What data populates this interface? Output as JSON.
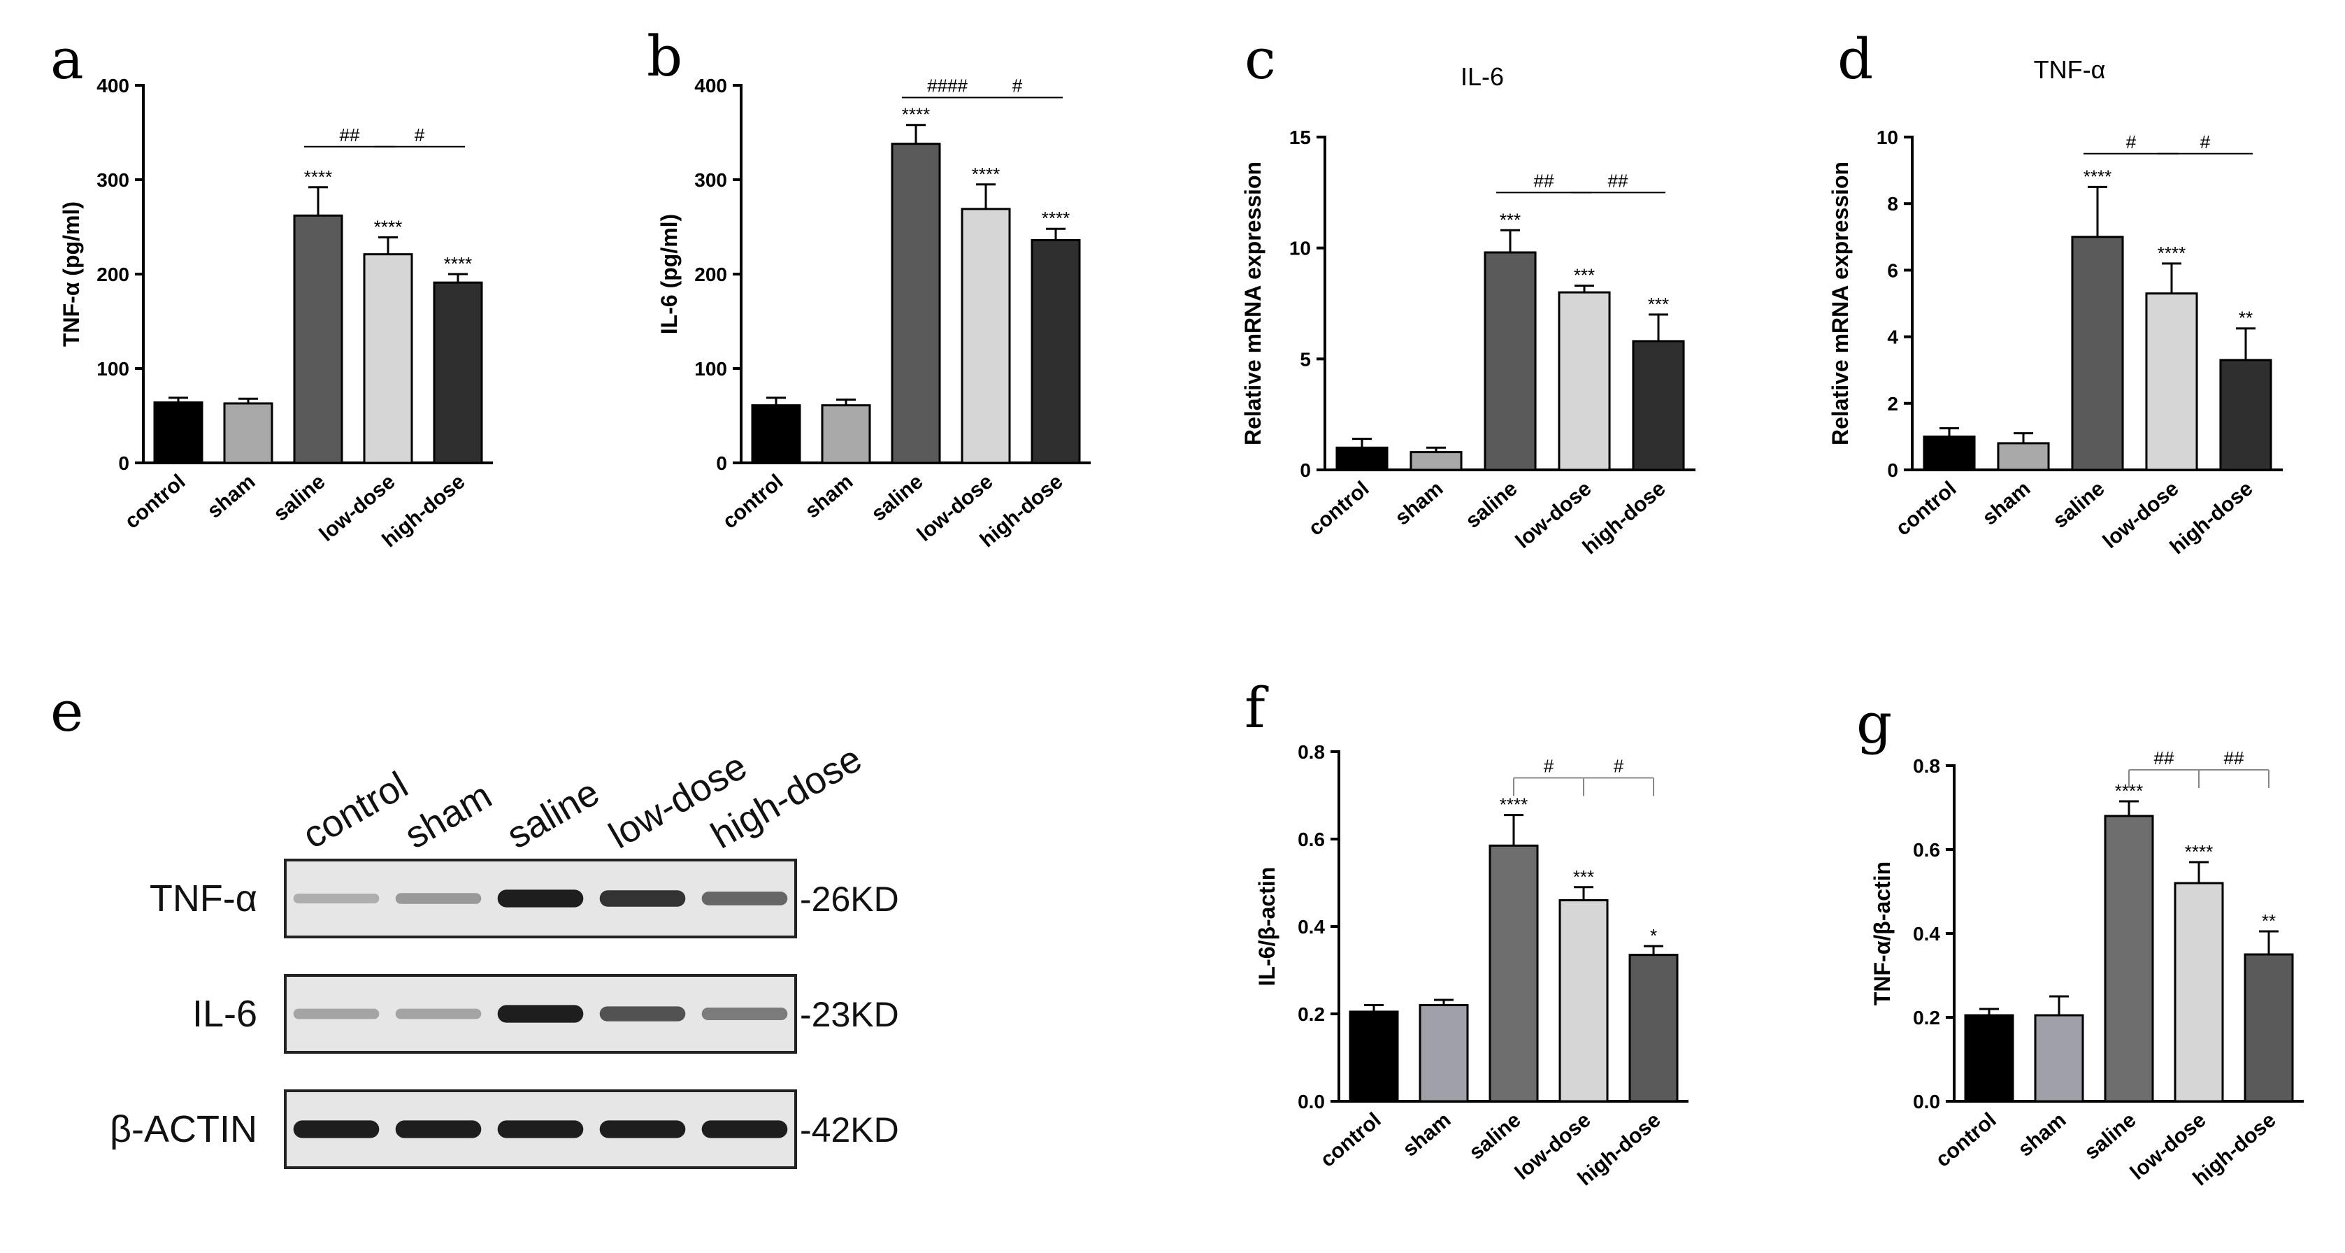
{
  "chart_data": [
    {
      "panel": "a",
      "type": "bar",
      "title": "",
      "ylabel": "TNF-α (pg/ml)",
      "ylim": [
        0,
        400
      ],
      "yticks": [
        0,
        100,
        200,
        300,
        400
      ],
      "categories": [
        "control",
        "sham",
        "saline",
        "low-dose",
        "high-dose"
      ],
      "values": [
        64,
        63,
        262,
        221,
        191
      ],
      "errors": [
        5,
        5,
        30,
        18,
        9
      ],
      "colors": [
        "#000000",
        "#a9a9a9",
        "#5a5a5a",
        "#d6d6d6",
        "#2f2f2f"
      ],
      "stars": [
        "",
        "",
        "****",
        "****",
        "****"
      ],
      "comparisons": [
        {
          "from": 2,
          "to": 3,
          "label": "##",
          "y": 335
        },
        {
          "from": 3,
          "to": 4,
          "label": "#",
          "y": 335
        }
      ]
    },
    {
      "panel": "b",
      "type": "bar",
      "title": "",
      "ylabel": "IL-6 (pg/ml)",
      "ylim": [
        0,
        400
      ],
      "yticks": [
        0,
        100,
        200,
        300,
        400
      ],
      "categories": [
        "control",
        "sham",
        "saline",
        "low-dose",
        "high-dose"
      ],
      "values": [
        61,
        61,
        338,
        269,
        236
      ],
      "errors": [
        8,
        6,
        20,
        26,
        12
      ],
      "colors": [
        "#000000",
        "#a9a9a9",
        "#5a5a5a",
        "#d6d6d6",
        "#2f2f2f"
      ],
      "stars": [
        "",
        "",
        "****",
        "****",
        "****"
      ],
      "comparisons": [
        {
          "from": 2,
          "to": 3,
          "label": "####",
          "y": 387
        },
        {
          "from": 3,
          "to": 4,
          "label": "#",
          "y": 387
        }
      ]
    },
    {
      "panel": "c",
      "type": "bar",
      "title": "IL-6",
      "ylabel": "Relative mRNA expression",
      "ylim": [
        0,
        15
      ],
      "yticks": [
        0,
        5,
        10,
        15
      ],
      "categories": [
        "control",
        "sham",
        "saline",
        "low-dose",
        "high-dose"
      ],
      "values": [
        1.0,
        0.8,
        9.8,
        8.0,
        5.8
      ],
      "errors": [
        0.4,
        0.2,
        1.0,
        0.3,
        1.2
      ],
      "colors": [
        "#000000",
        "#a9a9a9",
        "#5a5a5a",
        "#d6d6d6",
        "#2f2f2f"
      ],
      "stars": [
        "",
        "",
        "***",
        "***",
        "***"
      ],
      "comparisons": [
        {
          "from": 2,
          "to": 3,
          "label": "##",
          "y": 12.5
        },
        {
          "from": 3,
          "to": 4,
          "label": "##",
          "y": 12.5
        }
      ]
    },
    {
      "panel": "d",
      "type": "bar",
      "title": "TNF-α",
      "ylabel": "Relative mRNA expression",
      "ylim": [
        0,
        10
      ],
      "yticks": [
        0,
        2,
        4,
        6,
        8,
        10
      ],
      "categories": [
        "control",
        "sham",
        "saline",
        "low-dose",
        "high-dose"
      ],
      "values": [
        1.0,
        0.8,
        7.0,
        5.3,
        3.3
      ],
      "errors": [
        0.25,
        0.3,
        1.5,
        0.9,
        0.95
      ],
      "colors": [
        "#000000",
        "#a9a9a9",
        "#5a5a5a",
        "#d6d6d6",
        "#2f2f2f"
      ],
      "stars": [
        "",
        "",
        "****",
        "****",
        "**"
      ],
      "comparisons": [
        {
          "from": 2,
          "to": 3,
          "label": "#",
          "y": 9.5
        },
        {
          "from": 3,
          "to": 4,
          "label": "#",
          "y": 9.5
        }
      ]
    },
    {
      "panel": "f",
      "type": "bar",
      "title": "",
      "ylabel": "IL-6/β-actin",
      "ylim": [
        0,
        0.8
      ],
      "yticks": [
        "0.0",
        "0.2",
        "0.4",
        "0.6",
        "0.8"
      ],
      "categories": [
        "control",
        "sham",
        "saline",
        "low-dose",
        "high-dose"
      ],
      "values": [
        0.205,
        0.22,
        0.585,
        0.46,
        0.335
      ],
      "errors": [
        0.015,
        0.012,
        0.07,
        0.03,
        0.02
      ],
      "colors": [
        "#000000",
        "#a0a0a8",
        "#6e6e6e",
        "#d6d6d6",
        "#5a5a5a"
      ],
      "stars": [
        "",
        "",
        "****",
        "***",
        "*"
      ],
      "comparisons": [
        {
          "from": 2,
          "to": 3,
          "label": "#",
          "y": 0.74,
          "bracket": true
        },
        {
          "from": 3,
          "to": 4,
          "label": "#",
          "y": 0.74,
          "bracket": true
        }
      ]
    },
    {
      "panel": "g",
      "type": "bar",
      "title": "",
      "ylabel": "TNF-α/β-actin",
      "ylim": [
        0,
        0.8
      ],
      "yticks": [
        "0.0",
        "0.2",
        "0.4",
        "0.6",
        "0.8"
      ],
      "categories": [
        "control",
        "sham",
        "saline",
        "low-dose",
        "high-dose"
      ],
      "values": [
        0.205,
        0.205,
        0.68,
        0.52,
        0.35
      ],
      "errors": [
        0.015,
        0.045,
        0.035,
        0.05,
        0.055
      ],
      "colors": [
        "#000000",
        "#a0a0a8",
        "#6e6e6e",
        "#d6d6d6",
        "#5a5a5a"
      ],
      "stars": [
        "",
        "",
        "****",
        "****",
        "**"
      ],
      "comparisons": [
        {
          "from": 2,
          "to": 3,
          "label": "##",
          "y": 0.79,
          "bracket": true
        },
        {
          "from": 3,
          "to": 4,
          "label": "##",
          "y": 0.79,
          "bracket": true
        }
      ]
    }
  ],
  "panel_letters": [
    "a",
    "b",
    "c",
    "d",
    "e",
    "f",
    "g"
  ],
  "western_blot": {
    "lanes": [
      "control",
      "sham",
      "saline",
      "low-dose",
      "high-dose"
    ],
    "proteins": [
      {
        "label": "TNF-α",
        "size": "-26KD",
        "intensity": [
          0.25,
          0.35,
          0.95,
          0.85,
          0.6
        ]
      },
      {
        "label": "IL-6",
        "size": "-23KD",
        "intensity": [
          0.3,
          0.3,
          0.95,
          0.7,
          0.5
        ]
      },
      {
        "label": "β-ACTIN",
        "size": "-42KD",
        "intensity": [
          0.95,
          0.95,
          0.95,
          0.95,
          0.95
        ]
      }
    ]
  }
}
